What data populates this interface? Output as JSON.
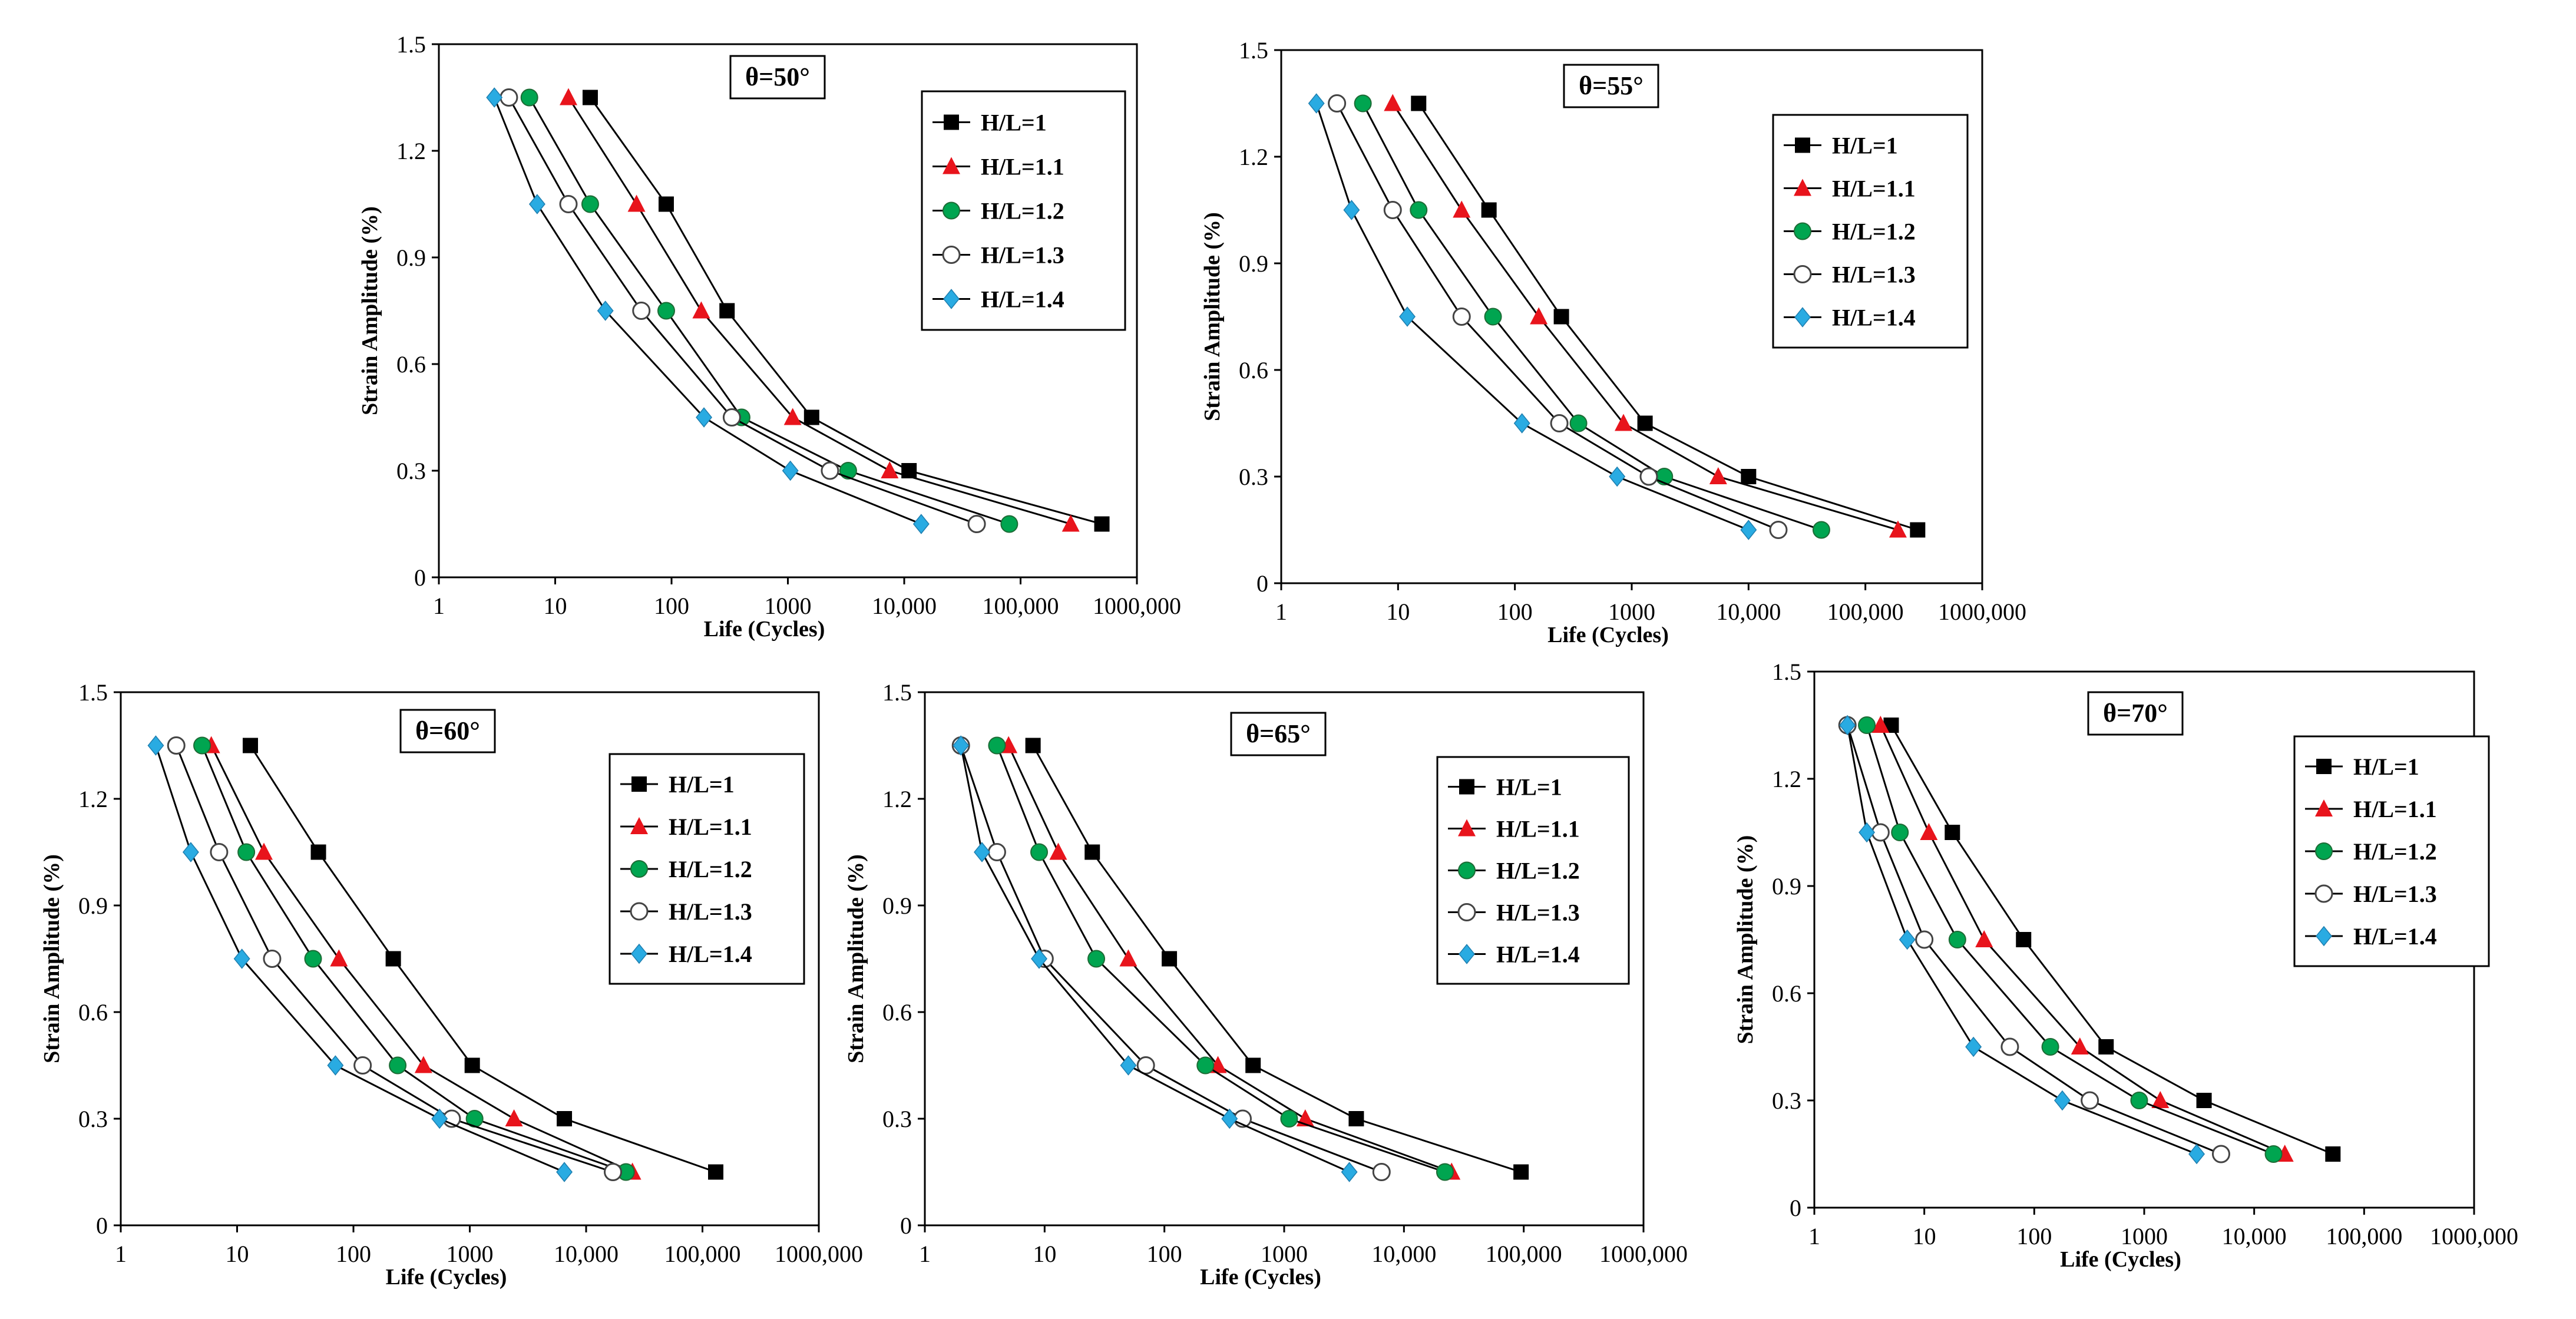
{
  "chart_data": [
    {
      "type": "line",
      "title": "θ=50°",
      "xlabel": "Life (Cycles)",
      "ylabel": "Strain Amplitude  (%)",
      "xscale": "log",
      "xlim": [
        1,
        1000000
      ],
      "ylim": [
        0,
        1.5
      ],
      "xticks": [
        "1",
        "10",
        "100",
        "1000",
        "10,000",
        "100,000",
        "1000,000"
      ],
      "yticks": [
        "0",
        "0.3",
        "0.6",
        "0.9",
        "1.2",
        "1.5"
      ],
      "legend_position": "top-right",
      "y": [
        1.35,
        1.05,
        0.75,
        0.45,
        0.3,
        0.15
      ],
      "series": [
        {
          "name": "H/L=1",
          "marker": "square",
          "color": "#000000",
          "x": [
            20,
            90,
            300,
            1600,
            11000,
            500000
          ]
        },
        {
          "name": "H/L=1.1",
          "marker": "triangle",
          "color": "#e8141c",
          "x": [
            13,
            50,
            180,
            1100,
            7500,
            270000
          ]
        },
        {
          "name": "H/L=1.2",
          "marker": "circle",
          "color": "#00a550",
          "x": [
            6,
            20,
            90,
            400,
            3300,
            80000
          ]
        },
        {
          "name": "H/L=1.3",
          "marker": "open-circle",
          "color": "#000000",
          "x": [
            4,
            13,
            55,
            330,
            2300,
            42000
          ]
        },
        {
          "name": "H/L=1.4",
          "marker": "diamond",
          "color": "#29abe2",
          "x": [
            3,
            7,
            27,
            190,
            1050,
            14000
          ]
        }
      ]
    },
    {
      "type": "line",
      "title": "θ=55°",
      "xlabel": "Life (Cycles)",
      "ylabel": "Strain Amplitude  (%)",
      "xscale": "log",
      "xlim": [
        1,
        1000000
      ],
      "ylim": [
        0,
        1.5
      ],
      "xticks": [
        "1",
        "10",
        "100",
        "1000",
        "10,000",
        "100,000",
        "1000,000"
      ],
      "yticks": [
        "0",
        "0.3",
        "0.6",
        "0.9",
        "1.2",
        "1.5"
      ],
      "legend_position": "top-right",
      "y": [
        1.35,
        1.05,
        0.75,
        0.45,
        0.3,
        0.15
      ],
      "series": [
        {
          "name": "H/L=1",
          "marker": "square",
          "color": "#000000",
          "x": [
            15,
            60,
            250,
            1300,
            10000,
            280000
          ]
        },
        {
          "name": "H/L=1.1",
          "marker": "triangle",
          "color": "#e8141c",
          "x": [
            9,
            35,
            160,
            850,
            5500,
            190000
          ]
        },
        {
          "name": "H/L=1.2",
          "marker": "circle",
          "color": "#00a550",
          "x": [
            5,
            15,
            65,
            350,
            1900,
            42000
          ]
        },
        {
          "name": "H/L=1.3",
          "marker": "open-circle",
          "color": "#000000",
          "x": [
            3,
            9,
            35,
            240,
            1400,
            18000
          ]
        },
        {
          "name": "H/L=1.4",
          "marker": "diamond",
          "color": "#29abe2",
          "x": [
            2,
            4,
            12,
            115,
            750,
            10000
          ]
        }
      ]
    },
    {
      "type": "line",
      "title": "θ=60°",
      "xlabel": "Life (Cycles)",
      "ylabel": "Strain Amplitude  (%)",
      "xscale": "log",
      "xlim": [
        1,
        1000000
      ],
      "ylim": [
        0,
        1.5
      ],
      "xticks": [
        "1",
        "10",
        "100",
        "1000",
        "10,000",
        "100,000",
        "1000,000"
      ],
      "yticks": [
        "0",
        "0.3",
        "0.6",
        "0.9",
        "1.2",
        "1.5"
      ],
      "legend_position": "top-right",
      "y": [
        1.35,
        1.05,
        0.75,
        0.45,
        0.3,
        0.15
      ],
      "series": [
        {
          "name": "H/L=1",
          "marker": "square",
          "color": "#000000",
          "x": [
            13,
            50,
            220,
            1050,
            6500,
            130000
          ]
        },
        {
          "name": "H/L=1.1",
          "marker": "triangle",
          "color": "#e8141c",
          "x": [
            6,
            17,
            75,
            400,
            2400,
            25000
          ]
        },
        {
          "name": "H/L=1.2",
          "marker": "circle",
          "color": "#00a550",
          "x": [
            5,
            12,
            45,
            240,
            1100,
            22000
          ]
        },
        {
          "name": "H/L=1.3",
          "marker": "open-circle",
          "color": "#000000",
          "x": [
            3,
            7,
            20,
            120,
            700,
            17000
          ]
        },
        {
          "name": "H/L=1.4",
          "marker": "diamond",
          "color": "#29abe2",
          "x": [
            2,
            4,
            11,
            70,
            550,
            6500
          ]
        }
      ]
    },
    {
      "type": "line",
      "title": "θ=65°",
      "xlabel": "Life (Cycles)",
      "ylabel": "Strain Amplitude  (%)",
      "xscale": "log",
      "xlim": [
        1,
        1000000
      ],
      "ylim": [
        0,
        1.5
      ],
      "xticks": [
        "1",
        "10",
        "100",
        "1000",
        "10,000",
        "100,000",
        "1000,000"
      ],
      "yticks": [
        "0",
        "0.3",
        "0.6",
        "0.9",
        "1.2",
        "1.5"
      ],
      "legend_position": "top-right",
      "y": [
        1.35,
        1.05,
        0.75,
        0.45,
        0.3,
        0.15
      ],
      "series": [
        {
          "name": "H/L=1",
          "marker": "square",
          "color": "#000000",
          "x": [
            8,
            25,
            110,
            550,
            4000,
            95000
          ]
        },
        {
          "name": "H/L=1.1",
          "marker": "triangle",
          "color": "#e8141c",
          "x": [
            5,
            13,
            50,
            280,
            1500,
            25000
          ]
        },
        {
          "name": "H/L=1.2",
          "marker": "circle",
          "color": "#00a550",
          "x": [
            4,
            9,
            27,
            220,
            1100,
            22000
          ]
        },
        {
          "name": "H/L=1.3",
          "marker": "open-circle",
          "color": "#000000",
          "x": [
            2,
            4,
            10,
            70,
            450,
            6500
          ]
        },
        {
          "name": "H/L=1.4",
          "marker": "diamond",
          "color": "#29abe2",
          "x": [
            2,
            3,
            9,
            50,
            350,
            3500
          ]
        }
      ]
    },
    {
      "type": "line",
      "title": "θ=70°",
      "xlabel": "Life (Cycles)",
      "ylabel": "Strain Amplitude  (%)",
      "xscale": "log",
      "xlim": [
        1,
        1000000
      ],
      "ylim": [
        0,
        1.5
      ],
      "xticks": [
        "1",
        "10",
        "100",
        "1000",
        "10,000",
        "100,000",
        "1000,000"
      ],
      "yticks": [
        "0",
        "0.3",
        "0.6",
        "0.9",
        "1.2",
        "1.5"
      ],
      "legend_position": "top-right",
      "y": [
        1.35,
        1.05,
        0.75,
        0.45,
        0.3,
        0.15
      ],
      "series": [
        {
          "name": "H/L=1",
          "marker": "square",
          "color": "#000000",
          "x": [
            5,
            18,
            80,
            450,
            3500,
            52000
          ]
        },
        {
          "name": "H/L=1.1",
          "marker": "triangle",
          "color": "#e8141c",
          "x": [
            4,
            11,
            35,
            260,
            1400,
            19000
          ]
        },
        {
          "name": "H/L=1.2",
          "marker": "circle",
          "color": "#00a550",
          "x": [
            3,
            6,
            20,
            140,
            900,
            15000
          ]
        },
        {
          "name": "H/L=1.3",
          "marker": "open-circle",
          "color": "#000000",
          "x": [
            2,
            4,
            10,
            60,
            320,
            5000
          ]
        },
        {
          "name": "H/L=1.4",
          "marker": "diamond",
          "color": "#29abe2",
          "x": [
            2,
            3,
            7,
            28,
            180,
            3000
          ]
        }
      ]
    }
  ]
}
